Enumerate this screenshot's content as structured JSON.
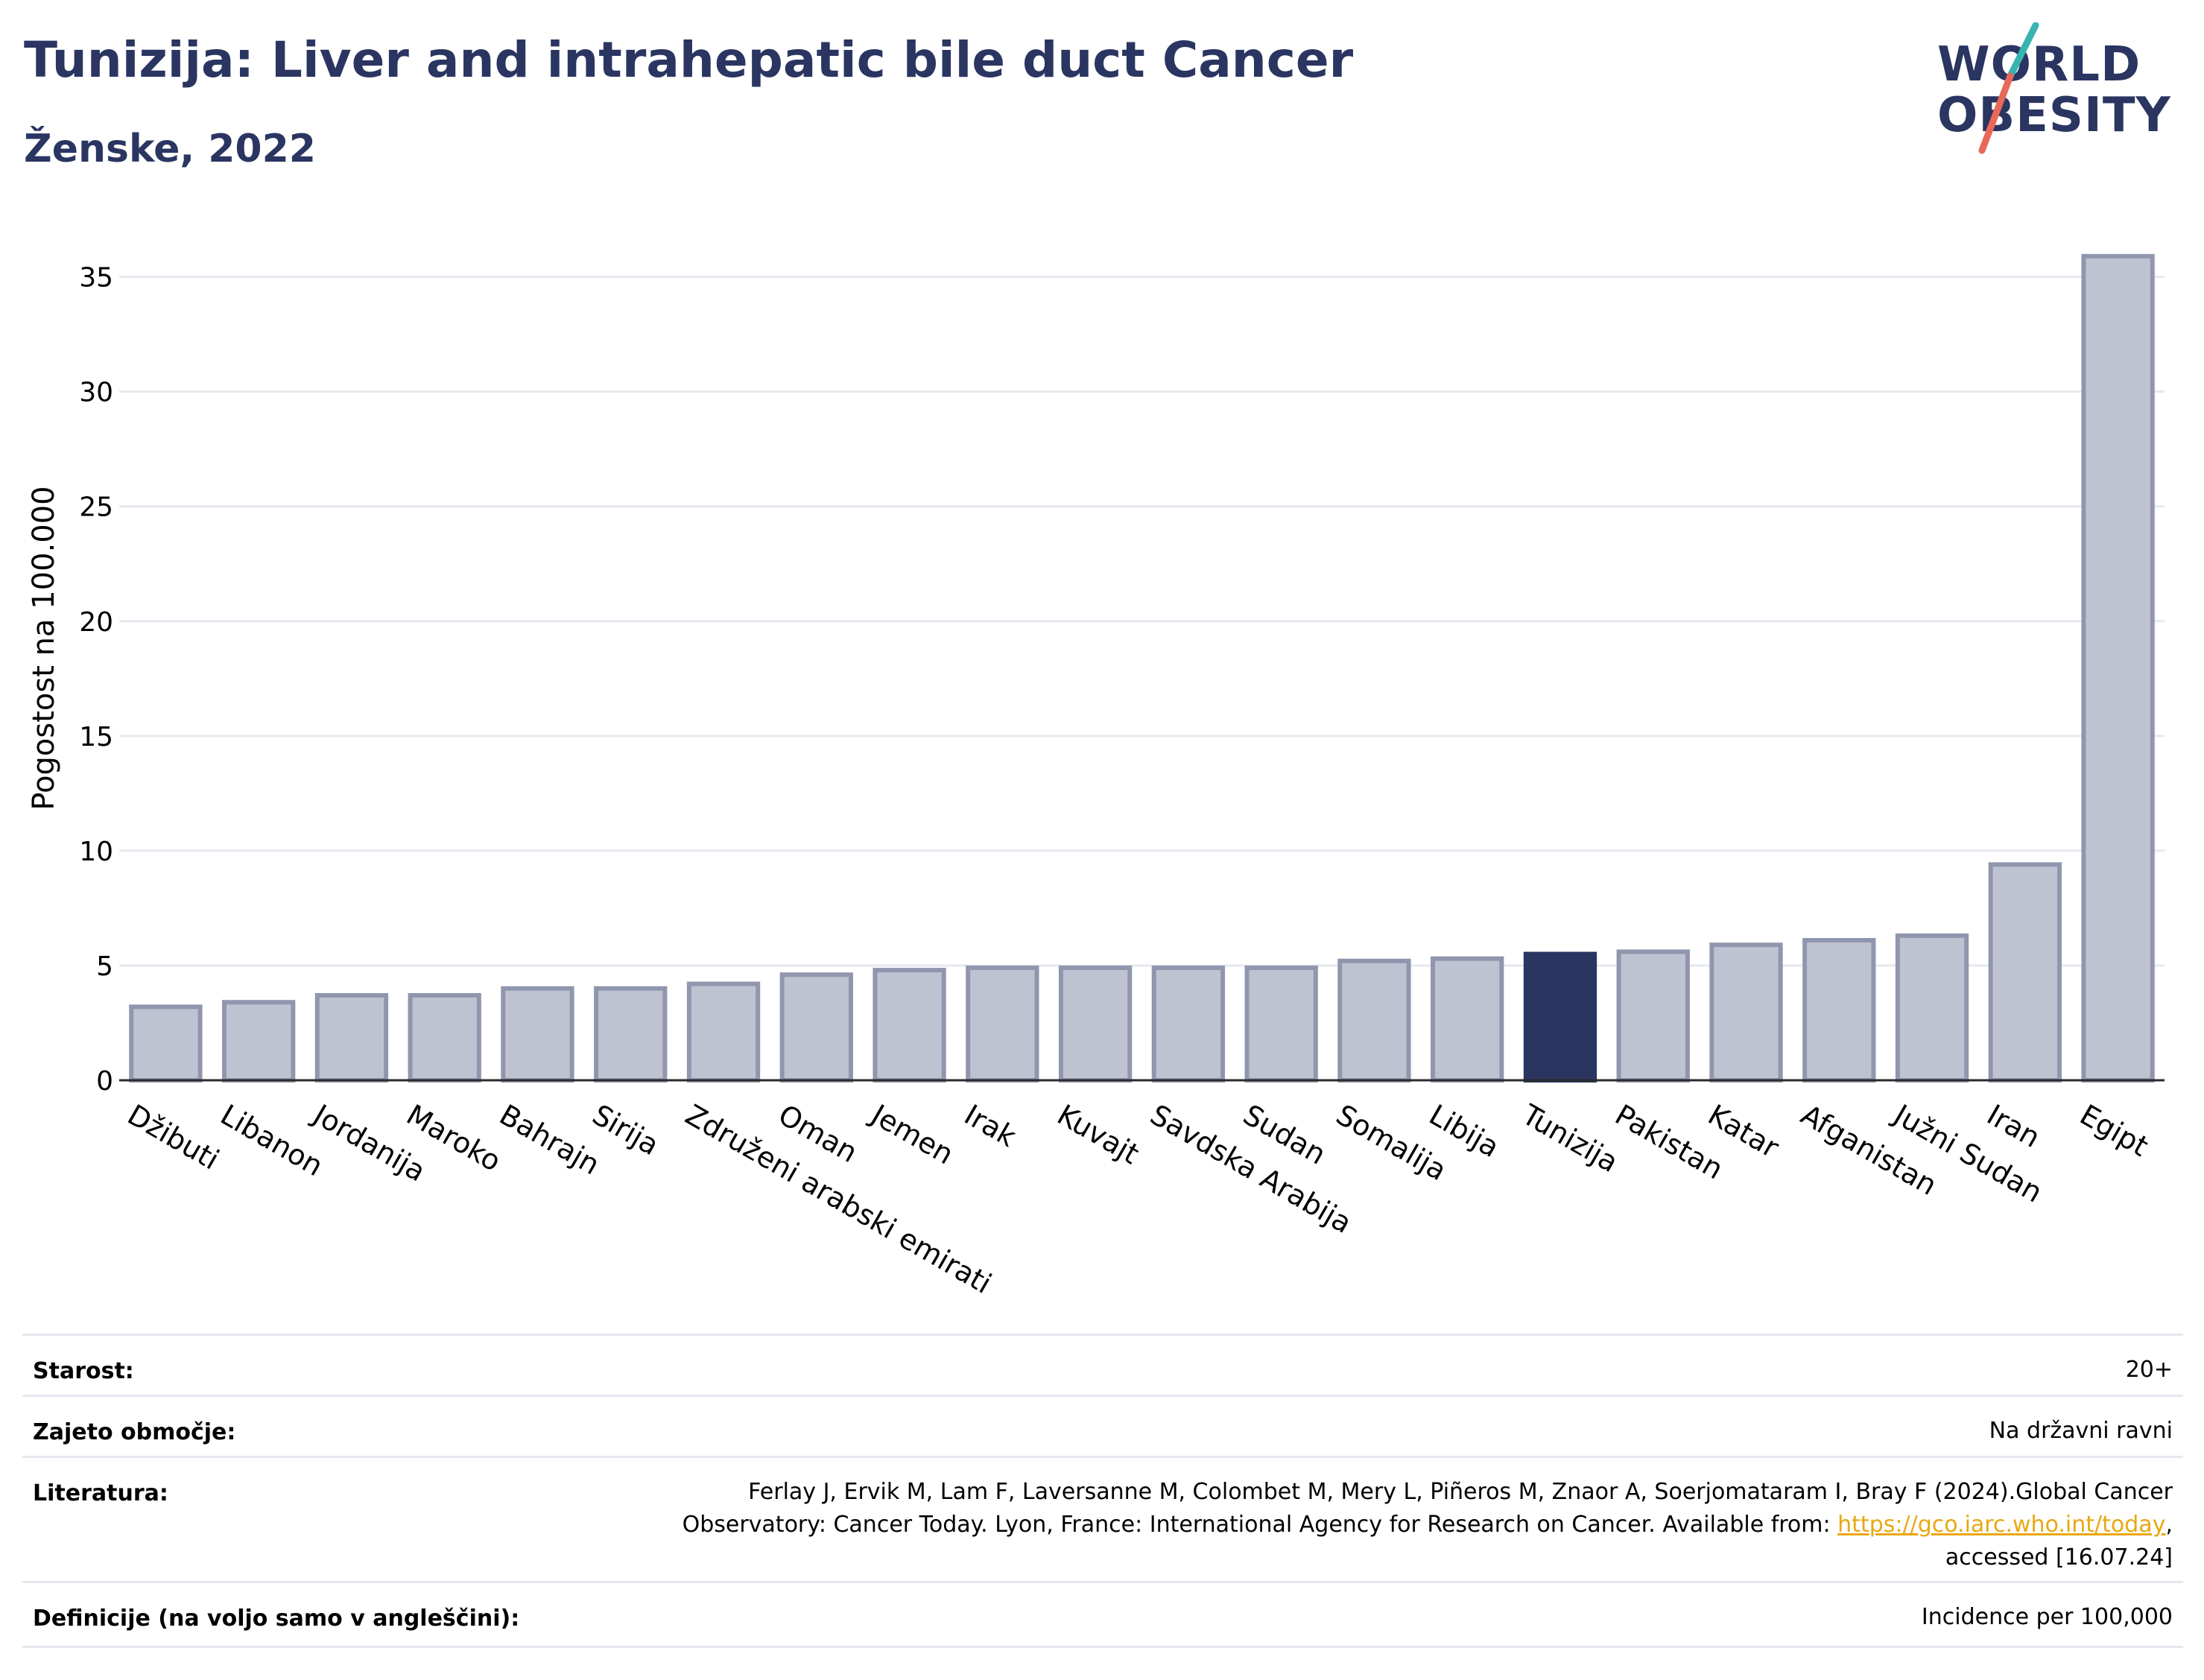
{
  "header": {
    "title": "Tunizija: Liver and intrahepatic bile duct Cancer",
    "subtitle": "Ženske, 2022"
  },
  "logo": {
    "line1": "WORLD",
    "line2": "OBESITY"
  },
  "colors": {
    "title": "#2a3561",
    "bar": "#bfc3d1",
    "bar_border": "#9096ae",
    "highlight": "#2a3561",
    "grid": "#e6e8ef",
    "logo_slash_teal": "#37b4b0",
    "logo_slash_red": "#e8685a",
    "link": "#e8a811"
  },
  "chart_data": {
    "type": "bar",
    "ylabel": "Pogostost na 100.000",
    "ylim": [
      0,
      37
    ],
    "yticks": [
      0,
      5,
      10,
      15,
      20,
      25,
      30,
      35
    ],
    "highlight": "Tunizija",
    "grid": true,
    "categories": [
      "Džibuti",
      "Libanon",
      "Jordanija",
      "Maroko",
      "Bahrajn",
      "Sirija",
      "Združeni arabski emirati",
      "Oman",
      "Jemen",
      "Irak",
      "Kuvajt",
      "Savdska Arabija",
      "Sudan",
      "Somalija",
      "Libija",
      "Tunizija",
      "Pakistan",
      "Katar",
      "Afganistan",
      "Južni Sudan",
      "Iran",
      "Egipt"
    ],
    "values": [
      3.2,
      3.4,
      3.7,
      3.7,
      4.0,
      4.0,
      4.2,
      4.6,
      4.8,
      4.9,
      4.9,
      4.9,
      4.9,
      5.2,
      5.3,
      5.5,
      5.6,
      5.9,
      6.1,
      6.3,
      9.4,
      35.9
    ]
  },
  "meta": {
    "rows": [
      {
        "label": "Starost:",
        "value": "20+"
      },
      {
        "label": "Zajeto območje:",
        "value": "Na državni ravni"
      },
      {
        "label": "Literatura:",
        "value_line1": "Ferlay J, Ervik M, Lam F, Laversanne M, Colombet M, Mery L, Piñeros M, Znaor A, Soerjomataram I, Bray F (2024).Global Cancer",
        "value_line2_pre": "Observatory: Cancer Today. Lyon, France: International Agency for Research on Cancer. Available from: ",
        "value_link": "https://gco.iarc.who.int/today",
        "value_line2_post": ",",
        "value_line3": "accessed [16.07.24]"
      },
      {
        "label": "Definicije (na voljo samo v angleščini):",
        "value": "Incidence per 100,000"
      }
    ]
  }
}
